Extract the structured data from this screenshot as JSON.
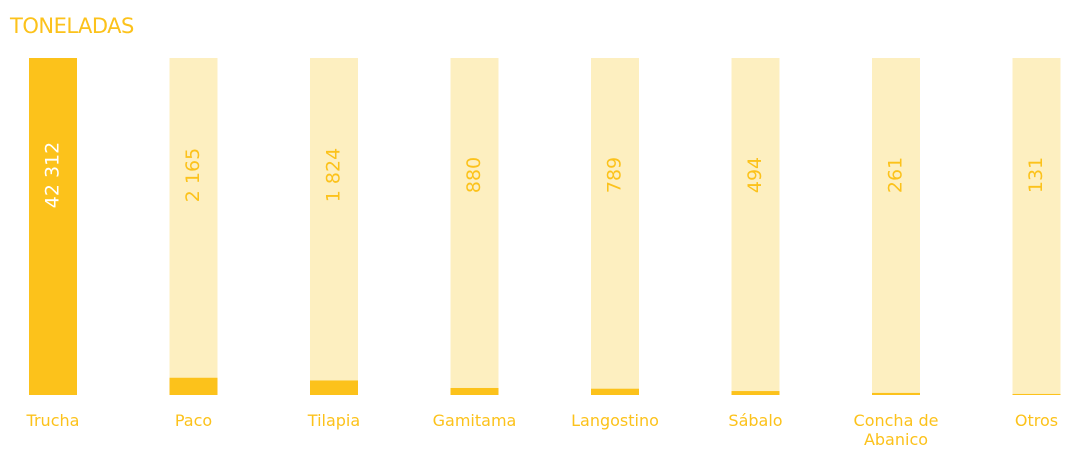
{
  "chart_data": {
    "type": "bar",
    "title": "TONELADAS",
    "categories": [
      "Trucha",
      "Paco",
      "Tilapia",
      "Gamitama",
      "Langostino",
      "Sábalo",
      "Concha de Abanico",
      "Otros"
    ],
    "values": [
      42312,
      2165,
      1824,
      880,
      789,
      494,
      261,
      131
    ],
    "value_labels": [
      "42 312",
      "2 165",
      "1 824",
      "880",
      "789",
      "494",
      "261",
      "131"
    ],
    "color": "#fcc21b",
    "track_color": "#fdefc0"
  }
}
